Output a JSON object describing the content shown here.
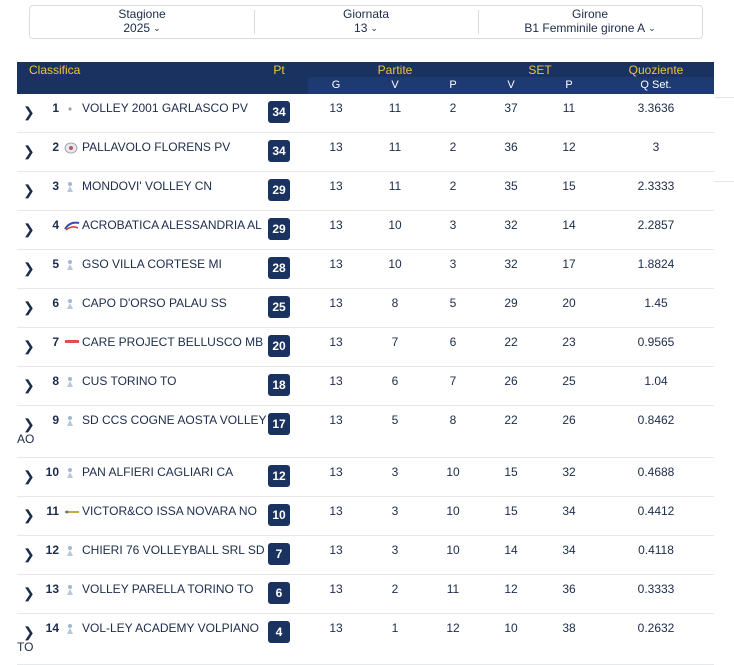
{
  "filters": [
    {
      "label": "Stagione",
      "value": "2025"
    },
    {
      "label": "Giornata",
      "value": "13"
    },
    {
      "label": "Girone",
      "value": "B1 Femminile girone A"
    }
  ],
  "header": {
    "classifica": "Classifica",
    "pt": "Pt",
    "partite": "Partite",
    "set": "SET",
    "quoziente": "Quoziente",
    "g": "G",
    "v": "V",
    "p": "P",
    "set_v": "V",
    "set_p": "P",
    "qset": "Q Set."
  },
  "colors": {
    "header_bg": "#1a3260",
    "accent_gold": "#f0c43a",
    "points_badge": "#1a3260"
  },
  "rows": [
    {
      "pos": "1",
      "team": "VOLLEY 2001 GARLASCO PV",
      "wrap": "",
      "pt": "34",
      "g": "13",
      "v": "11",
      "p": "2",
      "sv": "37",
      "sp": "11",
      "q": "3.3636",
      "logo": "dot"
    },
    {
      "pos": "2",
      "team": "PALLAVOLO FLORENS PV",
      "wrap": "",
      "pt": "34",
      "g": "13",
      "v": "11",
      "p": "2",
      "sv": "36",
      "sp": "12",
      "q": "3",
      "logo": "crest"
    },
    {
      "pos": "3",
      "team": "MONDOVI' VOLLEY CN",
      "wrap": "",
      "pt": "29",
      "g": "13",
      "v": "11",
      "p": "2",
      "sv": "35",
      "sp": "15",
      "q": "2.3333",
      "logo": "player"
    },
    {
      "pos": "4",
      "team": "ACROBATICA ALESSANDRIA AL",
      "wrap": "",
      "pt": "29",
      "g": "13",
      "v": "10",
      "p": "3",
      "sv": "32",
      "sp": "14",
      "q": "2.2857",
      "logo": "swoosh"
    },
    {
      "pos": "5",
      "team": "GSO VILLA CORTESE MI",
      "wrap": "",
      "pt": "28",
      "g": "13",
      "v": "10",
      "p": "3",
      "sv": "32",
      "sp": "17",
      "q": "1.8824",
      "logo": "player"
    },
    {
      "pos": "6",
      "team": "CAPO D'ORSO PALAU SS",
      "wrap": "",
      "pt": "25",
      "g": "13",
      "v": "8",
      "p": "5",
      "sv": "29",
      "sp": "20",
      "q": "1.45",
      "logo": "player"
    },
    {
      "pos": "7",
      "team": "CARE PROJECT BELLUSCO MB",
      "wrap": "",
      "pt": "20",
      "g": "13",
      "v": "7",
      "p": "6",
      "sv": "22",
      "sp": "23",
      "q": "0.9565",
      "logo": "flag"
    },
    {
      "pos": "8",
      "team": "CUS TORINO TO",
      "wrap": "",
      "pt": "18",
      "g": "13",
      "v": "6",
      "p": "7",
      "sv": "26",
      "sp": "25",
      "q": "1.04",
      "logo": "player"
    },
    {
      "pos": "9",
      "team": "SD CCS COGNE AOSTA VOLLEY",
      "wrap": "AO",
      "pt": "17",
      "g": "13",
      "v": "5",
      "p": "8",
      "sv": "22",
      "sp": "26",
      "q": "0.8462",
      "logo": "player"
    },
    {
      "pos": "10",
      "team": "PAN ALFIERI CAGLIARI CA",
      "wrap": "",
      "pt": "12",
      "g": "13",
      "v": "3",
      "p": "10",
      "sv": "15",
      "sp": "32",
      "q": "0.4688",
      "logo": "player"
    },
    {
      "pos": "11",
      "team": "VICTOR&CO ISSA NOVARA NO",
      "wrap": "",
      "pt": "10",
      "g": "13",
      "v": "3",
      "p": "10",
      "sv": "15",
      "sp": "34",
      "q": "0.4412",
      "logo": "text"
    },
    {
      "pos": "12",
      "team": "CHIERI 76 VOLLEYBALL SRL SD",
      "wrap": "",
      "pt": "7",
      "g": "13",
      "v": "3",
      "p": "10",
      "sv": "14",
      "sp": "34",
      "q": "0.4118",
      "logo": "player"
    },
    {
      "pos": "13",
      "team": "VOLLEY PARELLA TORINO TO",
      "wrap": "",
      "pt": "6",
      "g": "13",
      "v": "2",
      "p": "11",
      "sv": "12",
      "sp": "36",
      "q": "0.3333",
      "logo": "player"
    },
    {
      "pos": "14",
      "team": "VOL-LEY ACADEMY VOLPIANO",
      "wrap": "TO",
      "pt": "4",
      "g": "13",
      "v": "1",
      "p": "12",
      "sv": "10",
      "sp": "38",
      "q": "0.2632",
      "logo": "player"
    }
  ]
}
